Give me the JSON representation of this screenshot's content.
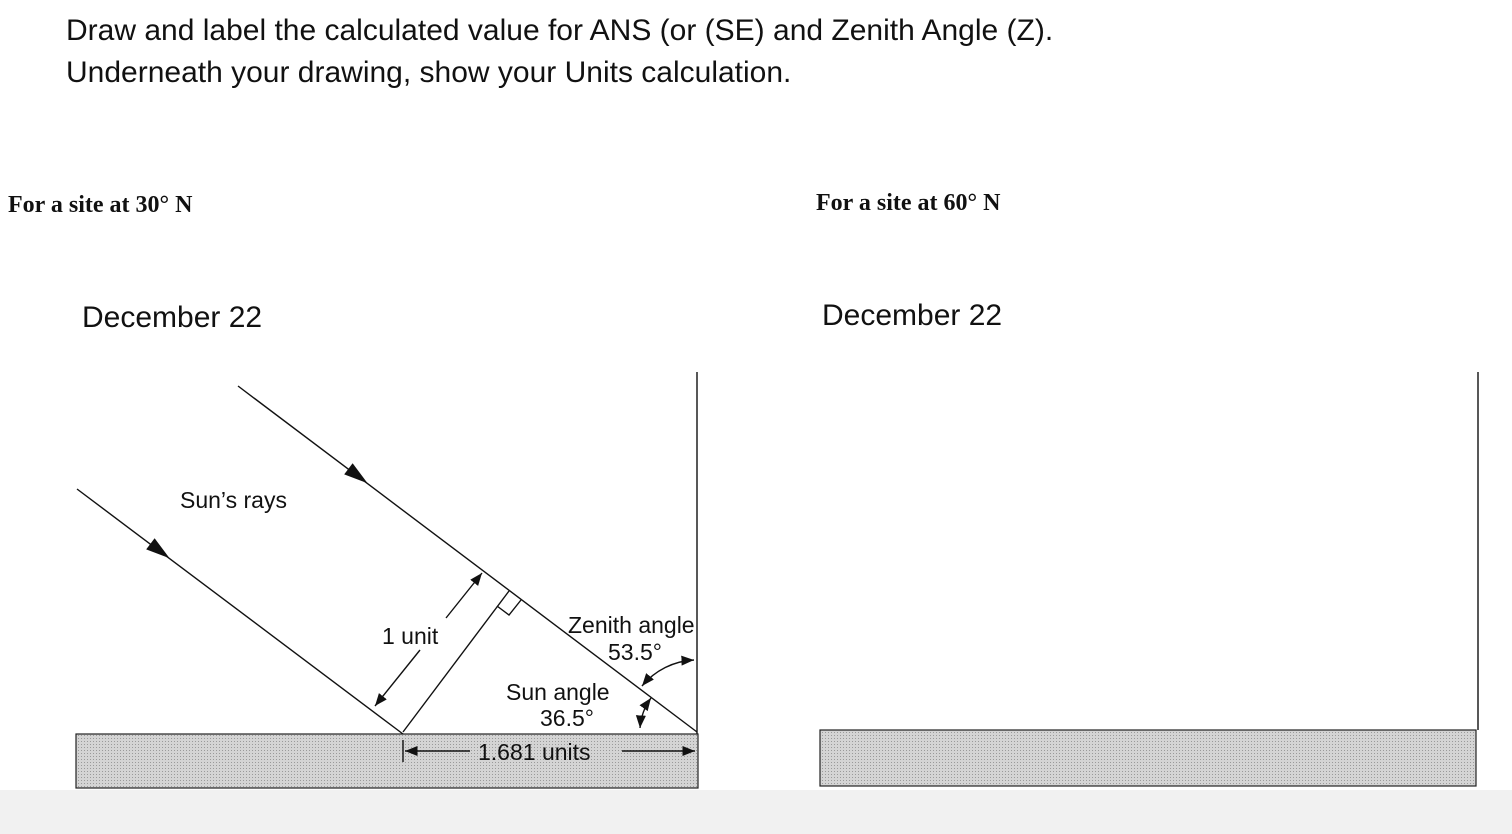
{
  "header": {
    "lines": [
      "Draw and label the calculated value for ANS (or (SE) and Zenith Angle (Z).",
      "Underneath your drawing, show your Units calculation."
    ]
  },
  "panels": [
    {
      "heading": "For a site at 30° N",
      "date": "December 22",
      "labels": {
        "rays": "Sun’s rays",
        "unit": "1 unit",
        "zenith": "Zenith angle",
        "zenith_value": "53.5°",
        "sun": "Sun angle",
        "sun_value": "36.5°",
        "length": "1.681 units"
      }
    },
    {
      "heading": "For a site at 60° N",
      "date": "December 22"
    }
  ]
}
